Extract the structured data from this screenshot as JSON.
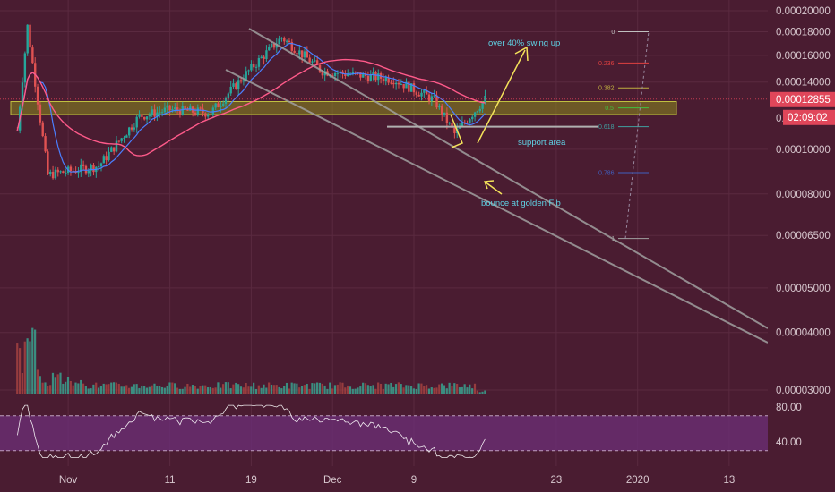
{
  "chart_data": {
    "type": "candlestick",
    "colors": {
      "background": "#4a1c31",
      "up": "#26a69a",
      "down": "#e05252",
      "ma_fast": "#4a7fff",
      "ma_slow": "#ff5a8a",
      "price_marker_bg": "#e0465a",
      "support_fill": "#8a8a1e",
      "arrow": "#f4e25a",
      "annotation_text": "#5fd3e6",
      "channel": "#a0a0a0",
      "rsi_band": "#6a2e74",
      "rsi_line": "#ffffff"
    },
    "price_axis": {
      "scale": "log",
      "ticks": [
        "0.00020000",
        "0.00018000",
        "0.00016000",
        "0.00014000",
        "0.00012855",
        "0.00010000",
        "0.00008000",
        "0.00006500",
        "0.00005000",
        "0.00004000",
        "0.00003000"
      ]
    },
    "tick_values": [
      0.0002,
      0.00018,
      0.00016,
      0.00014,
      0.0001,
      8e-05,
      6.5e-05,
      5e-05,
      4e-05,
      3e-05
    ],
    "current_price": "0.00012855",
    "countdown": "02:09:02",
    "current_price_partial": "0.",
    "rsi_axis": {
      "ticks": [
        "80.00",
        "40.00"
      ],
      "upper_band": 70,
      "lower_band": 30
    },
    "x_labels": [
      "Nov",
      "11",
      "19",
      "Dec",
      "9",
      "23",
      "2020",
      "13"
    ],
    "ohlc_summary": [
      {
        "date": "Oct 27",
        "close": 0.00011
      },
      {
        "date": "Oct 28",
        "close": 0.000185
      },
      {
        "date": "Oct 30",
        "close": 8.8e-05
      },
      {
        "date": "Nov 4",
        "close": 9.2e-05
      },
      {
        "date": "Nov 8",
        "close": 0.000118
      },
      {
        "date": "Nov 11",
        "close": 0.000122
      },
      {
        "date": "Nov 15",
        "close": 0.00012
      },
      {
        "date": "Nov 19",
        "close": 0.00015
      },
      {
        "date": "Nov 22",
        "close": 0.000175
      },
      {
        "date": "Nov 26",
        "close": 0.000148
      },
      {
        "date": "Dec 3",
        "close": 0.000142
      },
      {
        "date": "Dec 7",
        "close": 0.000128
      },
      {
        "date": "Dec 9",
        "close": 0.000108
      },
      {
        "date": "Dec 12",
        "close": 0.00012855
      }
    ],
    "support_area": {
      "top": 0.000127,
      "bottom": 0.000119,
      "label": "support area"
    },
    "fibonacci": [
      {
        "level": "0",
        "price": 0.00018
      },
      {
        "level": "0.236",
        "price": 0.000154
      },
      {
        "level": "0.382",
        "price": 0.000136
      },
      {
        "level": "0.5",
        "price": 0.000123
      },
      {
        "level": "0.618",
        "price": 0.000112
      },
      {
        "level": "0.786",
        "price": 8.9e-05
      },
      {
        "level": "1",
        "price": 6.4e-05
      }
    ],
    "annotations": {
      "swing": "over 40% swing up",
      "bounce": "bounce at golden Fib"
    }
  }
}
